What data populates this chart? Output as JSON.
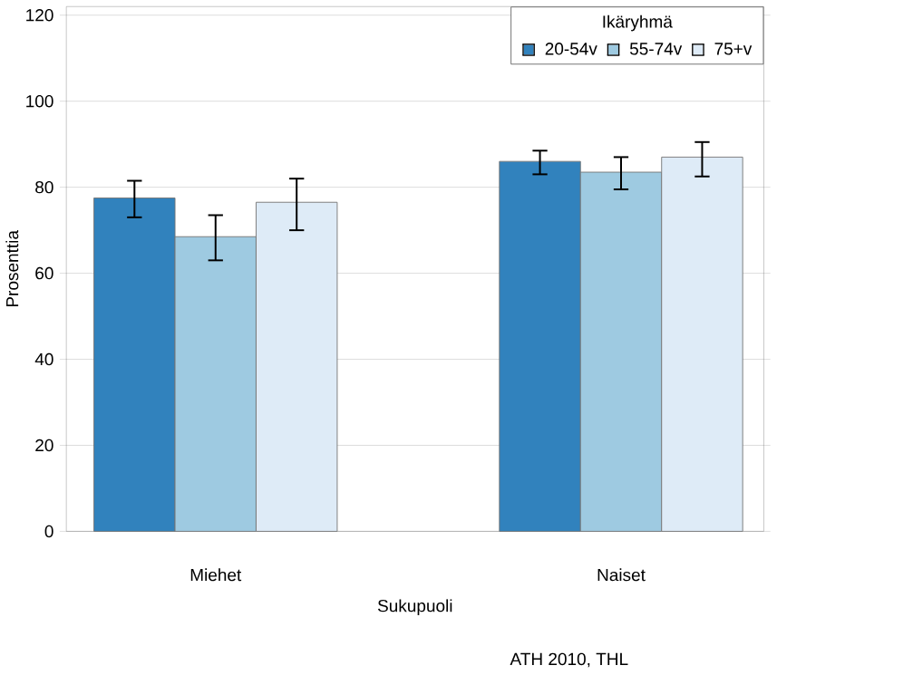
{
  "chart_data": {
    "type": "bar",
    "xlabel": "Sukupuoli",
    "ylabel": "Prosenttia",
    "legend_title": "Ikäryhmä",
    "categories": [
      "Miehet",
      "Naiset"
    ],
    "series": [
      {
        "name": "20-54v",
        "color": "#3182bd",
        "values": [
          77.5,
          86
        ],
        "errors": [
          [
            73,
            81.5
          ],
          [
            83,
            88.5
          ]
        ]
      },
      {
        "name": "55-74v",
        "color": "#9ecae1",
        "values": [
          68.5,
          83.5
        ],
        "errors": [
          [
            63,
            73.5
          ],
          [
            79.5,
            87
          ]
        ]
      },
      {
        "name": "75+v",
        "color": "#deebf7",
        "values": [
          76.5,
          87
        ],
        "errors": [
          [
            70,
            82
          ],
          [
            82.5,
            90.5
          ]
        ]
      }
    ],
    "ylim": [
      0,
      122
    ],
    "yticks": [
      0,
      20,
      40,
      60,
      80,
      100,
      120
    ],
    "grid": "y",
    "legend": "top right",
    "annotations": [
      "ATH 2010, THL"
    ]
  }
}
